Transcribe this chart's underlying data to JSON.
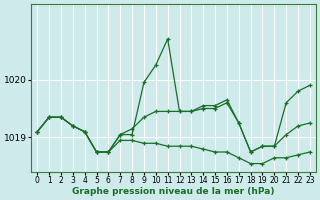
{
  "xlabel": "Graphe pression niveau de la mer (hPa)",
  "background_color": "#ceeaea",
  "plot_bg_color": "#ceeaea",
  "grid_color": "#ffffff",
  "line_color": "#1a6e2a",
  "ylim": [
    1018.4,
    1021.3
  ],
  "yticks": [
    1019,
    1020
  ],
  "xlim": [
    -0.5,
    23.5
  ],
  "xticks": [
    0,
    1,
    2,
    3,
    4,
    5,
    6,
    7,
    8,
    9,
    10,
    11,
    12,
    13,
    14,
    15,
    16,
    17,
    18,
    19,
    20,
    21,
    22,
    23
  ],
  "series": [
    [
      1019.1,
      1019.35,
      1019.35,
      1019.2,
      1019.1,
      1018.75,
      1018.75,
      1019.05,
      1019.05,
      1019.95,
      1020.25,
      1020.7,
      1019.45,
      1019.45,
      1019.55,
      1019.55,
      1019.65,
      1019.25,
      1018.75,
      1018.85,
      1018.85,
      1019.6,
      1019.8,
      1019.9
    ],
    [
      1019.1,
      1019.35,
      1019.35,
      1019.2,
      1019.1,
      1018.75,
      1018.75,
      1019.05,
      1019.15,
      1019.35,
      1019.45,
      1019.45,
      1019.45,
      1019.45,
      1019.5,
      1019.5,
      1019.6,
      1019.25,
      1018.75,
      1018.85,
      1018.85,
      1019.05,
      1019.2,
      1019.25
    ],
    [
      1019.1,
      1019.35,
      1019.35,
      1019.2,
      1019.1,
      1018.75,
      1018.75,
      1018.95,
      1018.95,
      1018.9,
      1018.9,
      1018.85,
      1018.85,
      1018.85,
      1018.8,
      1018.75,
      1018.75,
      1018.65,
      1018.55,
      1018.55,
      1018.65,
      1018.65,
      1018.7,
      1018.75
    ]
  ]
}
